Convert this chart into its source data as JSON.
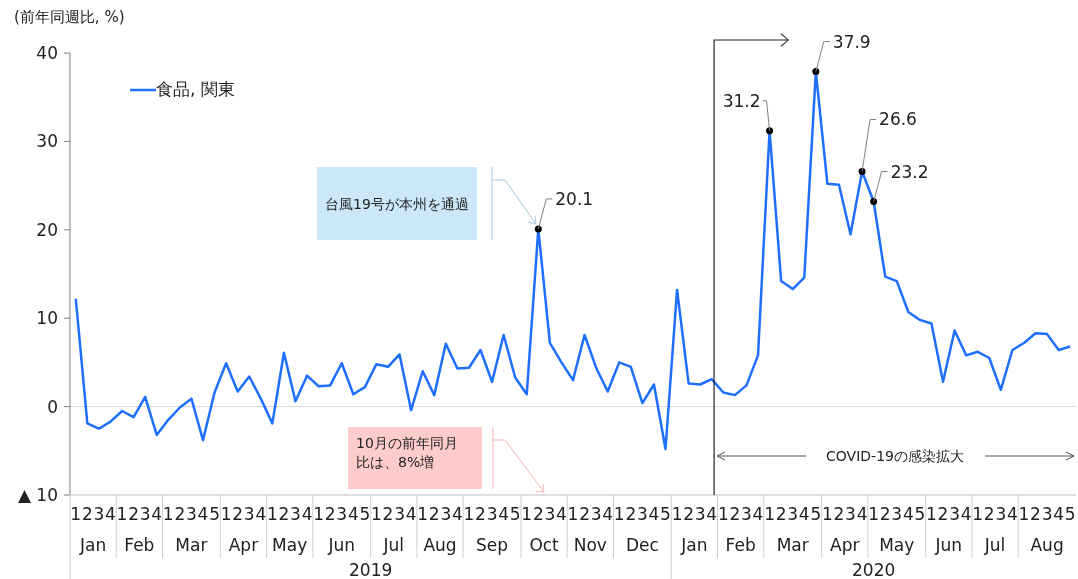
{
  "chart_data": {
    "type": "line",
    "ylabel": "(前年同週比, %)",
    "categories": [
      "1",
      "2",
      "3",
      "4",
      "1",
      "2",
      "3",
      "4",
      "1",
      "2",
      "3",
      "4",
      "5",
      "1",
      "2",
      "3",
      "4",
      "1",
      "2",
      "3",
      "4",
      "1",
      "2",
      "3",
      "4",
      "5",
      "1",
      "2",
      "3",
      "4",
      "1",
      "2",
      "3",
      "4",
      "1",
      "2",
      "3",
      "4",
      "5",
      "1",
      "2",
      "3",
      "4",
      "1",
      "2",
      "3",
      "4",
      "1",
      "2",
      "3",
      "4",
      "5",
      "1",
      "2",
      "3",
      "4",
      "1",
      "2",
      "3",
      "4",
      "1",
      "2",
      "3",
      "4",
      "5",
      "1",
      "2",
      "3",
      "4",
      "1",
      "2",
      "3",
      "4",
      "5",
      "1",
      "2",
      "3",
      "4",
      "1",
      "2",
      "3",
      "4",
      "1",
      "2",
      "3",
      "4",
      "5"
    ],
    "series": [
      {
        "name": "食品, 関東",
        "color": "#1f6fff",
        "values": [
          12.2,
          -1.9,
          -2.5,
          -1.7,
          -0.5,
          -1.2,
          1.1,
          -3.2,
          -1.5,
          -0.1,
          0.9,
          -3.8,
          1.6,
          4.9,
          1.7,
          3.4,
          0.9,
          -1.9,
          6.1,
          0.6,
          3.5,
          2.3,
          2.4,
          4.9,
          1.4,
          2.2,
          4.8,
          4.5,
          5.9,
          -0.4,
          4.0,
          1.3,
          7.1,
          4.3,
          4.4,
          6.4,
          2.8,
          8.1,
          3.3,
          1.4,
          20.1,
          7.2,
          5.0,
          3.0,
          8.1,
          4.4,
          1.7,
          5.0,
          4.5,
          0.4,
          2.5,
          -4.8,
          13.2,
          2.6,
          2.5,
          3.1,
          1.6,
          1.3,
          2.4,
          5.8,
          31.2,
          14.2,
          13.3,
          14.6,
          37.9,
          25.2,
          25.1,
          19.5,
          26.6,
          23.2,
          14.7,
          14.2,
          10.7,
          9.8,
          9.4,
          2.8,
          8.6,
          5.8,
          6.2,
          5.5,
          1.9,
          6.4,
          7.2,
          8.3,
          8.2,
          6.4,
          6.8
        ],
        "value_labels": [
          null,
          null,
          null,
          null,
          null,
          null,
          null,
          null,
          null,
          null,
          null,
          null,
          null,
          null,
          null,
          null,
          null,
          null,
          null,
          null,
          null,
          null,
          null,
          null,
          null,
          null,
          null,
          null,
          null,
          null,
          null,
          null,
          null,
          null,
          null,
          null,
          null,
          null,
          null,
          null,
          "20.1",
          null,
          null,
          null,
          null,
          null,
          null,
          null,
          null,
          null,
          null,
          null,
          null,
          null,
          null,
          null,
          null,
          null,
          null,
          null,
          "31.2",
          null,
          null,
          null,
          "37.9",
          null,
          null,
          null,
          "26.6",
          "23.2",
          null,
          null,
          null,
          null,
          null,
          null,
          null,
          null,
          null,
          null,
          null,
          null,
          null,
          null,
          null,
          null,
          null
        ]
      }
    ],
    "ylim": [
      -10,
      40
    ],
    "yticks": [
      {
        "value": -10,
        "label": "▲ 10"
      },
      0,
      10,
      20,
      30,
      40
    ],
    "ref_lines": [
      {
        "axis": "y",
        "value": 0,
        "color": "#d9d9d9"
      }
    ],
    "legend": "top left",
    "marker": "none",
    "line_style": "solid",
    "annotations": [
      "Jan",
      "Feb",
      "Mar",
      "Apr",
      "May",
      "Jun",
      "Jul",
      "Aug",
      "Sep",
      "Oct",
      "Nov",
      "Dec",
      "Jan",
      "Feb",
      "Mar",
      "Apr",
      "May",
      "Jun",
      "Jul",
      "Aug",
      "2019",
      "2020",
      "台風19号が本州を通過",
      "10月の前年同月比は、8%増",
      "COVID-19の感染拡大"
    ]
  }
}
